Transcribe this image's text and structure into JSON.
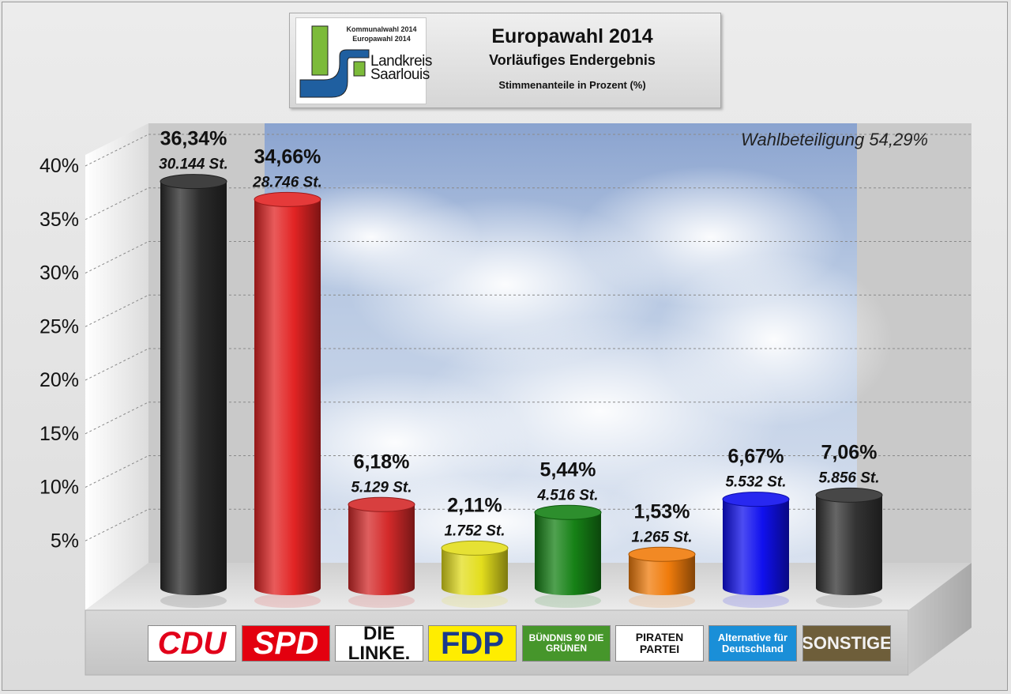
{
  "header": {
    "logo_line1": "Kommunalwahl 2014",
    "logo_line2": "Europawahl 2014",
    "logo_line3": "Landkreis",
    "logo_line4": "Saarlouis",
    "title": "Europawahl 2014",
    "subtitle": "Vorläufiges Endergebnis",
    "note": "Stimmenanteile in Prozent (%)"
  },
  "turnout_label": "Wahlbeteiligung 54,29%",
  "chart_data": {
    "type": "bar",
    "title": "Europawahl 2014",
    "subtitle": "Vorläufiges Endergebnis",
    "ylabel": "",
    "xlabel": "",
    "ylim": [
      0,
      40
    ],
    "yticks": [
      "5%",
      "10%",
      "15%",
      "20%",
      "25%",
      "30%",
      "35%",
      "40%"
    ],
    "grid": true,
    "categories": [
      "CDU",
      "SPD",
      "DIE LINKE.",
      "FDP",
      "BÜNDNIS 90 DIE GRÜNEN",
      "PIRATEN PARTEI",
      "Alternative für Deutschland",
      "SONSTIGE"
    ],
    "values": [
      36.34,
      34.66,
      6.18,
      2.11,
      5.44,
      1.53,
      6.67,
      7.06
    ],
    "pct_labels": [
      "36,34%",
      "34,66%",
      "6,18%",
      "2,11%",
      "5,44%",
      "1,53%",
      "6,67%",
      "7,06%"
    ],
    "vote_labels": [
      "30.144 St.",
      "28.746 St.",
      "5.129 St.",
      "1.752 St.",
      "4.516 St.",
      "1.265 St.",
      "5.532 St.",
      "5.856 St."
    ],
    "colors": [
      "#2b2b2b",
      "#e22424",
      "#d42a2a",
      "#e3de1d",
      "#168116",
      "#f07c0c",
      "#1010ee",
      "#333333"
    ]
  },
  "party_logos": [
    {
      "text": "CDU",
      "bg": "#ffffff",
      "fg": "#e2001a",
      "border": "#888888"
    },
    {
      "text": "SPD",
      "bg": "#e3000f",
      "fg": "#ffffff",
      "border": "#888888"
    },
    {
      "text": "DIE LINKE.",
      "bg": "#ffffff",
      "fg": "#111111",
      "border": "#888888"
    },
    {
      "text": "FDP",
      "bg": "#ffed00",
      "fg": "#1a3a8c",
      "border": "#888888"
    },
    {
      "text": "BÜNDNIS 90 DIE GRÜNEN",
      "bg": "#46962b",
      "fg": "#ffffff",
      "border": "#888888"
    },
    {
      "text": "PIRATEN PARTEI",
      "bg": "#ffffff",
      "fg": "#111111",
      "border": "#888888"
    },
    {
      "text": "Alternative für Deutschland",
      "bg": "#1a8fd8",
      "fg": "#ffffff",
      "border": "#888888"
    },
    {
      "text": "SONSTIGE",
      "bg": "#6e5e3a",
      "fg": "#f2f2f2",
      "border": "#888888"
    }
  ]
}
